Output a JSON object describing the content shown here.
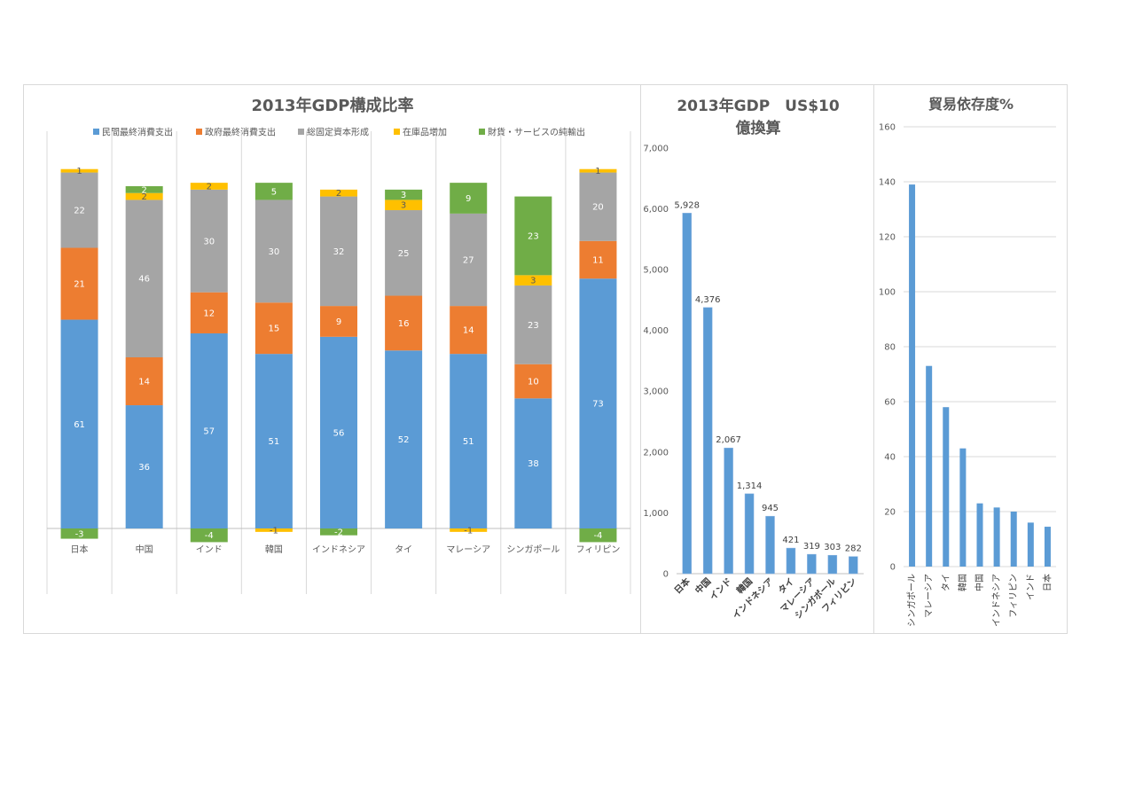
{
  "chart_data": [
    {
      "type": "bar",
      "stacked": true,
      "title": "2013年GDP構成比率",
      "categories": [
        "日本",
        "中国",
        "インド",
        "韓国",
        "インドネシア",
        "タイ",
        "マレーシア",
        "シンガポール",
        "フィリピン"
      ],
      "series": [
        {
          "name": "民間最終消費支出",
          "color": "#5b9bd5",
          "values": [
            61,
            36,
            57,
            51,
            56,
            52,
            51,
            38,
            73
          ]
        },
        {
          "name": "政府最終消費支出",
          "color": "#ed7d31",
          "values": [
            21,
            14,
            12,
            15,
            9,
            16,
            14,
            10,
            11
          ]
        },
        {
          "name": "総固定資本形成",
          "color": "#a5a5a5",
          "values": [
            22,
            46,
            30,
            30,
            32,
            25,
            27,
            23,
            20
          ]
        },
        {
          "name": "在庫品増加",
          "color": "#ffc000",
          "values": [
            1,
            2,
            2,
            -1,
            2,
            3,
            -1,
            3,
            1
          ]
        },
        {
          "name": "財貨・サービスの純輸出",
          "color": "#70ad47",
          "values": [
            -3,
            2,
            -4,
            5,
            -2,
            3,
            9,
            23,
            -4
          ]
        }
      ],
      "legend": "top",
      "grid": false
    },
    {
      "type": "bar",
      "title_lines": [
        "2013年GDP　US$10",
        "億換算"
      ],
      "categories": [
        "日本",
        "中国",
        "インド",
        "韓国",
        "インドネシア",
        "タイ",
        "マレーシア",
        "シンガポール",
        "フィリピン"
      ],
      "values": [
        5928,
        4376,
        2067,
        1314,
        945,
        421,
        319,
        303,
        282
      ],
      "value_labels": [
        "5,928",
        "4,376",
        "2,067",
        "1,314",
        "945",
        "421",
        "319",
        "303",
        "282"
      ],
      "ylim": [
        0,
        7000
      ],
      "yticks": [
        "0",
        "1,000",
        "2,000",
        "3,000",
        "4,000",
        "5,000",
        "6,000",
        "7,000"
      ],
      "color": "#5b9bd5",
      "grid": false
    },
    {
      "type": "bar",
      "title": "貿易依存度%",
      "categories": [
        "シンガポール",
        "マレーシア",
        "タイ",
        "韓国",
        "中国",
        "インドネシア",
        "フィリピン",
        "インド",
        "日本"
      ],
      "values": [
        139,
        73,
        58,
        43,
        23,
        21.5,
        20,
        16,
        14.5
      ],
      "ylim": [
        0,
        160
      ],
      "yticks": [
        "0",
        "20",
        "40",
        "60",
        "80",
        "100",
        "120",
        "140",
        "160"
      ],
      "color": "#5b9bd5",
      "grid": true
    }
  ]
}
